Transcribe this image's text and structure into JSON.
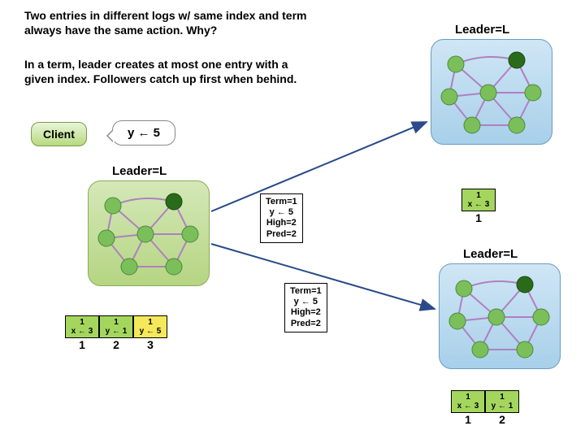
{
  "text1": "Two entries in different logs w/ same index and term always have the same action. Why?",
  "text2": "In a term, leader creates at most one entry with a given index. Followers catch up first when behind.",
  "leader_label": "Leader=L",
  "client_label": "Client",
  "bubble": "y ← 5",
  "msg": {
    "l1": "Term=1",
    "l2": "y ← 5",
    "l3": "High=2",
    "l4": "Pred=2"
  },
  "logA": [
    {
      "t": "1",
      "a": "x ← 3",
      "c": "green"
    },
    {
      "t": "1",
      "a": "y ← 1",
      "c": "green"
    },
    {
      "t": "1",
      "a": "y ← 5",
      "c": "yellow"
    }
  ],
  "idxA": [
    "1",
    "2",
    "3"
  ],
  "logB": [
    {
      "t": "1",
      "a": "x ← 3",
      "c": "green"
    }
  ],
  "idxB": [
    "1"
  ],
  "logC": [
    {
      "t": "1",
      "a": "x ← 3",
      "c": "green"
    },
    {
      "t": "1",
      "a": "y ← 1",
      "c": "green"
    }
  ],
  "idxC": [
    "1",
    "2"
  ],
  "colors": {
    "node_fill": "#7bbf5a",
    "node_stroke": "#4a8a3a",
    "leader_fill": "#2a6b1a",
    "edge": "#b080c0"
  }
}
